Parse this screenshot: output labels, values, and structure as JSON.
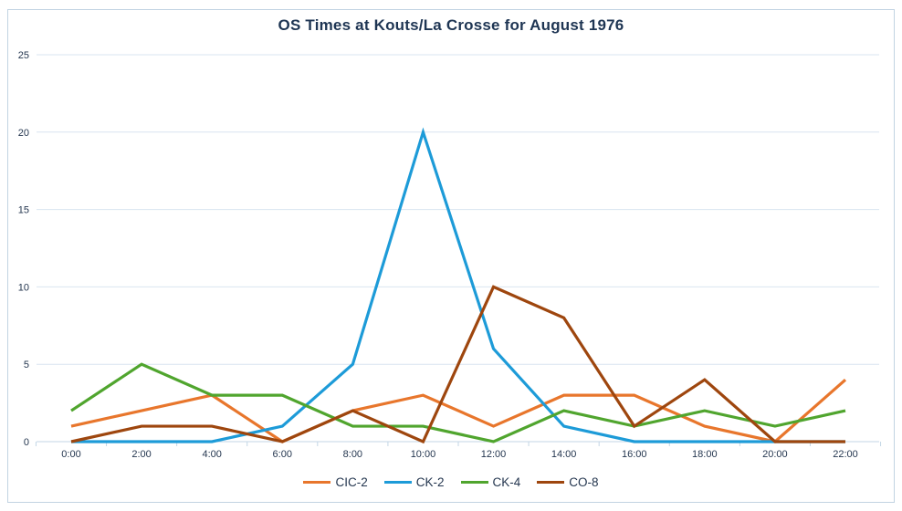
{
  "chart_data": {
    "type": "line",
    "title": "OS Times at Kouts/La Crosse for August 1976",
    "categories": [
      "0:00",
      "2:00",
      "4:00",
      "6:00",
      "8:00",
      "10:00",
      "12:00",
      "14:00",
      "16:00",
      "18:00",
      "20:00",
      "22:00"
    ],
    "series": [
      {
        "name": "CIC-2",
        "color": "#e8762c",
        "values": [
          1,
          2,
          3,
          0,
          2,
          3,
          1,
          3,
          3,
          1,
          0,
          4
        ]
      },
      {
        "name": "CK-2",
        "color": "#1d9bd8",
        "values": [
          0,
          0,
          0,
          1,
          5,
          20,
          6,
          1,
          0,
          0,
          0,
          0
        ]
      },
      {
        "name": "CK-4",
        "color": "#50a52e",
        "values": [
          2,
          5,
          3,
          3,
          1,
          1,
          0,
          2,
          1,
          2,
          1,
          2
        ]
      },
      {
        "name": "CO-8",
        "color": "#9e460e",
        "values": [
          0,
          1,
          1,
          0,
          2,
          0,
          10,
          8,
          1,
          4,
          0,
          0
        ]
      }
    ],
    "y_ticks": [
      0,
      5,
      10,
      15,
      20,
      25
    ],
    "ylim": [
      0,
      25
    ],
    "xlabel": "",
    "ylabel": "",
    "grid": true,
    "legend_position": "bottom"
  },
  "colors": {
    "title_text": "#1e3553",
    "axis_text": "#24364f",
    "gridline": "#d9e4f0",
    "axis_line": "#c3d6e6",
    "frame_border": "#c2d3e2",
    "background": "#ffffff"
  }
}
